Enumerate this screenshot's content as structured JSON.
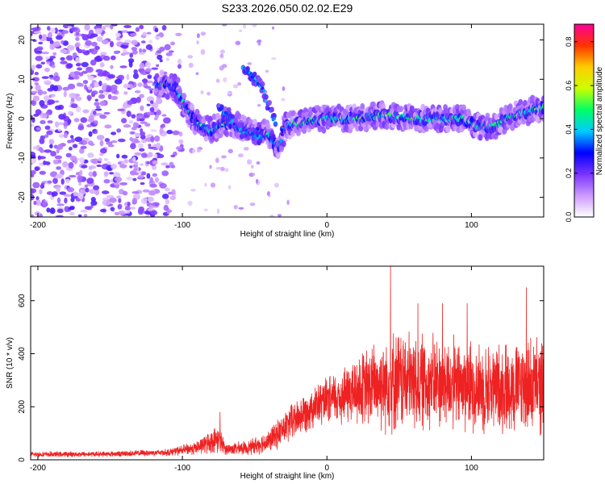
{
  "title": "S233.2026.050.02.02.E29",
  "chart_data": [
    {
      "type": "heatmap",
      "id": "spectrogram",
      "xlabel": "Height of straight line (km)",
      "ylabel": "Frequency (Hz)",
      "xlim": [
        -205,
        150
      ],
      "ylim": [
        -25,
        24
      ],
      "xticks": [
        -200,
        -100,
        0,
        100
      ],
      "yticks": [
        -20,
        -10,
        0,
        10,
        20
      ],
      "colorbar": {
        "label": "Normalized spectral amplitude",
        "range": [
          0.0,
          0.88
        ],
        "ticks": [
          0.0,
          0.2,
          0.4,
          0.6,
          0.8
        ],
        "colors": [
          "#ffffff",
          "#cc99ff",
          "#7a33ff",
          "#0000ff",
          "#00ccff",
          "#00ff66",
          "#ccff00",
          "#ffcc00",
          "#ff3300",
          "#ff0099"
        ]
      },
      "ridge": {
        "description": "dominant frequency trace",
        "points": [
          {
            "x": -115,
            "y": 9
          },
          {
            "x": -105,
            "y": 8
          },
          {
            "x": -98,
            "y": 3
          },
          {
            "x": -90,
            "y": -1
          },
          {
            "x": -80,
            "y": -3
          },
          {
            "x": -70,
            "y": -1
          },
          {
            "x": -60,
            "y": -2
          },
          {
            "x": -50,
            "y": -3
          },
          {
            "x": -40,
            "y": -4
          },
          {
            "x": -33,
            "y": -8
          },
          {
            "x": -30,
            "y": -2
          },
          {
            "x": -20,
            "y": -1
          },
          {
            "x": 0,
            "y": 0
          },
          {
            "x": 20,
            "y": 0
          },
          {
            "x": 40,
            "y": 1
          },
          {
            "x": 60,
            "y": 0
          },
          {
            "x": 80,
            "y": 0
          },
          {
            "x": 95,
            "y": 0
          },
          {
            "x": 105,
            "y": -2
          },
          {
            "x": 115,
            "y": -2
          },
          {
            "x": 125,
            "y": 0
          },
          {
            "x": 140,
            "y": 2
          },
          {
            "x": 150,
            "y": 3
          }
        ]
      },
      "branches": [
        {
          "points": [
            {
              "x": -58,
              "y": 13
            },
            {
              "x": -50,
              "y": 10
            },
            {
              "x": -45,
              "y": 8
            },
            {
              "x": -40,
              "y": 3
            },
            {
              "x": -35,
              "y": -2
            }
          ]
        },
        {
          "points": [
            {
              "x": -75,
              "y": 3
            },
            {
              "x": -68,
              "y": 1
            },
            {
              "x": -60,
              "y": -3
            },
            {
              "x": -52,
              "y": -4
            },
            {
              "x": -45,
              "y": -5
            }
          ]
        }
      ],
      "noise_region_x": [
        -205,
        -95
      ]
    },
    {
      "type": "line",
      "id": "snr",
      "xlabel": "Height of straight line (km)",
      "ylabel": "SNR (10 * v/v)",
      "xlim": [
        -205,
        150
      ],
      "ylim": [
        0,
        730
      ],
      "xticks": [
        -200,
        -100,
        0,
        100
      ],
      "yticks": [
        0,
        200,
        400,
        600
      ],
      "color": "#ee2222",
      "envelope": [
        {
          "x": -205,
          "y": 20,
          "spread": 12
        },
        {
          "x": -150,
          "y": 22,
          "spread": 12
        },
        {
          "x": -110,
          "y": 28,
          "spread": 15
        },
        {
          "x": -90,
          "y": 45,
          "spread": 30
        },
        {
          "x": -75,
          "y": 80,
          "spread": 60
        },
        {
          "x": -70,
          "y": 40,
          "spread": 25
        },
        {
          "x": -55,
          "y": 45,
          "spread": 30
        },
        {
          "x": -40,
          "y": 70,
          "spread": 50
        },
        {
          "x": -25,
          "y": 140,
          "spread": 80
        },
        {
          "x": -10,
          "y": 200,
          "spread": 90
        },
        {
          "x": 0,
          "y": 220,
          "spread": 100
        },
        {
          "x": 20,
          "y": 260,
          "spread": 150
        },
        {
          "x": 45,
          "y": 300,
          "spread": 220
        },
        {
          "x": 80,
          "y": 290,
          "spread": 200
        },
        {
          "x": 110,
          "y": 270,
          "spread": 190
        },
        {
          "x": 150,
          "y": 280,
          "spread": 210
        }
      ],
      "peaks": [
        {
          "x": -74,
          "y": 180
        },
        {
          "x": 44,
          "y": 730
        },
        {
          "x": 63,
          "y": 590
        },
        {
          "x": 80,
          "y": 590
        },
        {
          "x": 97,
          "y": 590
        },
        {
          "x": 138,
          "y": 650
        }
      ]
    }
  ]
}
